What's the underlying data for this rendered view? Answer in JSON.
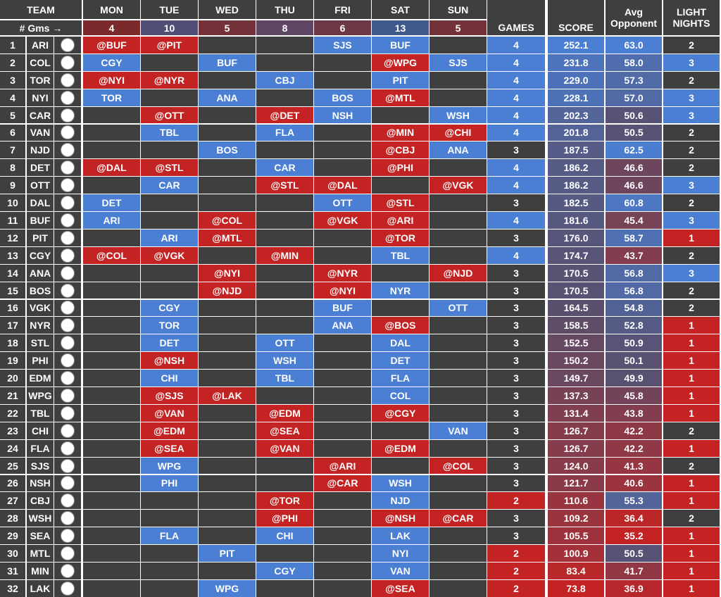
{
  "header": {
    "team": "TEAM",
    "gms_label": "# Gms →",
    "days": [
      "MON",
      "TUE",
      "WED",
      "THU",
      "FRI",
      "SAT",
      "SUN"
    ],
    "day_games": [
      "4",
      "10",
      "5",
      "8",
      "6",
      "13",
      "5"
    ],
    "games": "GAMES",
    "score": "SCORE",
    "avg_opp": "Avg Opponent",
    "light_nights": "LIGHT NIGHTS"
  },
  "colors": {
    "dark": "#3f3f3f",
    "blue": "#4a7fd4",
    "red": "#c42323",
    "light_day": "#3f5a85",
    "heavy_day": "#7a2a2a",
    "gms_neutral": "#5e3a4a"
  },
  "rows": [
    {
      "rank": "1",
      "team": "ARI",
      "logo_icon": "coyotes-logo-icon",
      "days": [
        [
          "@BUF",
          "red"
        ],
        [
          "@PIT",
          "red"
        ],
        [
          "",
          ""
        ],
        [
          "",
          ""
        ],
        [
          "SJS",
          "blue"
        ],
        [
          "BUF",
          "blue"
        ],
        [
          "",
          ""
        ]
      ],
      "games": "4",
      "score": "252.1",
      "avg": "63.0",
      "light": "2"
    },
    {
      "rank": "2",
      "team": "COL",
      "logo_icon": "avalanche-logo-icon",
      "days": [
        [
          "CGY",
          "blue"
        ],
        [
          "",
          ""
        ],
        [
          "BUF",
          "blue"
        ],
        [
          "",
          ""
        ],
        [
          "",
          ""
        ],
        [
          "@WPG",
          "red"
        ],
        [
          "SJS",
          "blue"
        ]
      ],
      "games": "4",
      "score": "231.8",
      "avg": "58.0",
      "light": "3"
    },
    {
      "rank": "3",
      "team": "TOR",
      "logo_icon": "maple-leafs-logo-icon",
      "days": [
        [
          "@NYI",
          "red"
        ],
        [
          "@NYR",
          "red"
        ],
        [
          "",
          ""
        ],
        [
          "CBJ",
          "blue"
        ],
        [
          "",
          ""
        ],
        [
          "PIT",
          "blue"
        ],
        [
          "",
          ""
        ]
      ],
      "games": "4",
      "score": "229.0",
      "avg": "57.3",
      "light": "2"
    },
    {
      "rank": "4",
      "team": "NYI",
      "logo_icon": "islanders-logo-icon",
      "days": [
        [
          "TOR",
          "blue"
        ],
        [
          "",
          ""
        ],
        [
          "ANA",
          "blue"
        ],
        [
          "",
          ""
        ],
        [
          "BOS",
          "blue"
        ],
        [
          "@MTL",
          "red"
        ],
        [
          "",
          ""
        ]
      ],
      "games": "4",
      "score": "228.1",
      "avg": "57.0",
      "light": "3"
    },
    {
      "rank": "5",
      "team": "CAR",
      "logo_icon": "hurricanes-logo-icon",
      "days": [
        [
          "",
          ""
        ],
        [
          "@OTT",
          "red"
        ],
        [
          "",
          ""
        ],
        [
          "@DET",
          "red"
        ],
        [
          "NSH",
          "blue"
        ],
        [
          "",
          ""
        ],
        [
          "WSH",
          "blue"
        ]
      ],
      "games": "4",
      "score": "202.3",
      "avg": "50.6",
      "light": "3"
    },
    {
      "rank": "6",
      "team": "VAN",
      "logo_icon": "canucks-logo-icon",
      "days": [
        [
          "",
          ""
        ],
        [
          "TBL",
          "blue"
        ],
        [
          "",
          ""
        ],
        [
          "FLA",
          "blue"
        ],
        [
          "",
          ""
        ],
        [
          "@MIN",
          "red"
        ],
        [
          "@CHI",
          "red"
        ]
      ],
      "games": "4",
      "score": "201.8",
      "avg": "50.5",
      "light": "2"
    },
    {
      "rank": "7",
      "team": "NJD",
      "logo_icon": "devils-logo-icon",
      "days": [
        [
          "",
          ""
        ],
        [
          "",
          ""
        ],
        [
          "BOS",
          "blue"
        ],
        [
          "",
          ""
        ],
        [
          "",
          ""
        ],
        [
          "@CBJ",
          "red"
        ],
        [
          "ANA",
          "blue"
        ]
      ],
      "games": "3",
      "score": "187.5",
      "avg": "62.5",
      "light": "2"
    },
    {
      "rank": "8",
      "team": "DET",
      "logo_icon": "red-wings-logo-icon",
      "days": [
        [
          "@DAL",
          "red"
        ],
        [
          "@STL",
          "red"
        ],
        [
          "",
          ""
        ],
        [
          "CAR",
          "blue"
        ],
        [
          "",
          ""
        ],
        [
          "@PHI",
          "red"
        ],
        [
          "",
          ""
        ]
      ],
      "games": "4",
      "score": "186.2",
      "avg": "46.6",
      "light": "2"
    },
    {
      "rank": "9",
      "team": "OTT",
      "logo_icon": "senators-logo-icon",
      "days": [
        [
          "",
          ""
        ],
        [
          "CAR",
          "blue"
        ],
        [
          "",
          ""
        ],
        [
          "@STL",
          "red"
        ],
        [
          "@DAL",
          "red"
        ],
        [
          "",
          ""
        ],
        [
          "@VGK",
          "red"
        ]
      ],
      "games": "4",
      "score": "186.2",
      "avg": "46.6",
      "light": "3"
    },
    {
      "rank": "10",
      "team": "DAL",
      "logo_icon": "stars-logo-icon",
      "days": [
        [
          "DET",
          "blue"
        ],
        [
          "",
          ""
        ],
        [
          "",
          ""
        ],
        [
          "",
          ""
        ],
        [
          "OTT",
          "blue"
        ],
        [
          "@STL",
          "red"
        ],
        [
          "",
          ""
        ]
      ],
      "games": "3",
      "score": "182.5",
      "avg": "60.8",
      "light": "2"
    },
    {
      "rank": "11",
      "team": "BUF",
      "logo_icon": "sabres-logo-icon",
      "days": [
        [
          "ARI",
          "blue"
        ],
        [
          "",
          ""
        ],
        [
          "@COL",
          "red"
        ],
        [
          "",
          ""
        ],
        [
          "@VGK",
          "red"
        ],
        [
          "@ARI",
          "red"
        ],
        [
          "",
          ""
        ]
      ],
      "games": "4",
      "score": "181.6",
      "avg": "45.4",
      "light": "3"
    },
    {
      "rank": "12",
      "team": "PIT",
      "logo_icon": "penguins-logo-icon",
      "days": [
        [
          "",
          ""
        ],
        [
          "ARI",
          "blue"
        ],
        [
          "@MTL",
          "red"
        ],
        [
          "",
          ""
        ],
        [
          "",
          ""
        ],
        [
          "@TOR",
          "red"
        ],
        [
          "",
          ""
        ]
      ],
      "games": "3",
      "score": "176.0",
      "avg": "58.7",
      "light": "1"
    },
    {
      "rank": "13",
      "team": "CGY",
      "logo_icon": "flames-logo-icon",
      "days": [
        [
          "@COL",
          "red"
        ],
        [
          "@VGK",
          "red"
        ],
        [
          "",
          ""
        ],
        [
          "@MIN",
          "red"
        ],
        [
          "",
          ""
        ],
        [
          "TBL",
          "blue"
        ],
        [
          "",
          ""
        ]
      ],
      "games": "4",
      "score": "174.7",
      "avg": "43.7",
      "light": "2"
    },
    {
      "rank": "14",
      "team": "ANA",
      "logo_icon": "ducks-logo-icon",
      "days": [
        [
          "",
          ""
        ],
        [
          "",
          ""
        ],
        [
          "@NYI",
          "red"
        ],
        [
          "",
          ""
        ],
        [
          "@NYR",
          "red"
        ],
        [
          "",
          ""
        ],
        [
          "@NJD",
          "red"
        ]
      ],
      "games": "3",
      "score": "170.5",
      "avg": "56.8",
      "light": "3"
    },
    {
      "rank": "15",
      "team": "BOS",
      "logo_icon": "bruins-logo-icon",
      "days": [
        [
          "",
          ""
        ],
        [
          "",
          ""
        ],
        [
          "@NJD",
          "red"
        ],
        [
          "",
          ""
        ],
        [
          "@NYI",
          "red"
        ],
        [
          "NYR",
          "blue"
        ],
        [
          "",
          ""
        ]
      ],
      "games": "3",
      "score": "170.5",
      "avg": "56.8",
      "light": "2"
    },
    {
      "rank": "16",
      "team": "VGK",
      "logo_icon": "golden-knights-logo-icon",
      "days": [
        [
          "",
          ""
        ],
        [
          "CGY",
          "blue"
        ],
        [
          "",
          ""
        ],
        [
          "",
          ""
        ],
        [
          "BUF",
          "blue"
        ],
        [
          "",
          ""
        ],
        [
          "OTT",
          "blue"
        ]
      ],
      "games": "3",
      "score": "164.5",
      "avg": "54.8",
      "light": "2"
    },
    {
      "rank": "17",
      "team": "NYR",
      "logo_icon": "rangers-logo-icon",
      "days": [
        [
          "",
          ""
        ],
        [
          "TOR",
          "blue"
        ],
        [
          "",
          ""
        ],
        [
          "",
          ""
        ],
        [
          "ANA",
          "blue"
        ],
        [
          "@BOS",
          "red"
        ],
        [
          "",
          ""
        ]
      ],
      "games": "3",
      "score": "158.5",
      "avg": "52.8",
      "light": "1"
    },
    {
      "rank": "18",
      "team": "STL",
      "logo_icon": "blues-logo-icon",
      "days": [
        [
          "",
          ""
        ],
        [
          "DET",
          "blue"
        ],
        [
          "",
          ""
        ],
        [
          "OTT",
          "blue"
        ],
        [
          "",
          ""
        ],
        [
          "DAL",
          "blue"
        ],
        [
          "",
          ""
        ]
      ],
      "games": "3",
      "score": "152.5",
      "avg": "50.9",
      "light": "1"
    },
    {
      "rank": "19",
      "team": "PHI",
      "logo_icon": "flyers-logo-icon",
      "days": [
        [
          "",
          ""
        ],
        [
          "@NSH",
          "red"
        ],
        [
          "",
          ""
        ],
        [
          "WSH",
          "blue"
        ],
        [
          "",
          ""
        ],
        [
          "DET",
          "blue"
        ],
        [
          "",
          ""
        ]
      ],
      "games": "3",
      "score": "150.2",
      "avg": "50.1",
      "light": "1"
    },
    {
      "rank": "20",
      "team": "EDM",
      "logo_icon": "oilers-logo-icon",
      "days": [
        [
          "",
          ""
        ],
        [
          "CHI",
          "blue"
        ],
        [
          "",
          ""
        ],
        [
          "TBL",
          "blue"
        ],
        [
          "",
          ""
        ],
        [
          "FLA",
          "blue"
        ],
        [
          "",
          ""
        ]
      ],
      "games": "3",
      "score": "149.7",
      "avg": "49.9",
      "light": "1"
    },
    {
      "rank": "21",
      "team": "WPG",
      "logo_icon": "jets-logo-icon",
      "days": [
        [
          "",
          ""
        ],
        [
          "@SJS",
          "red"
        ],
        [
          "@LAK",
          "red"
        ],
        [
          "",
          ""
        ],
        [
          "",
          ""
        ],
        [
          "COL",
          "blue"
        ],
        [
          "",
          ""
        ]
      ],
      "games": "3",
      "score": "137.3",
      "avg": "45.8",
      "light": "1"
    },
    {
      "rank": "22",
      "team": "TBL",
      "logo_icon": "lightning-logo-icon",
      "days": [
        [
          "",
          ""
        ],
        [
          "@VAN",
          "red"
        ],
        [
          "",
          ""
        ],
        [
          "@EDM",
          "red"
        ],
        [
          "",
          ""
        ],
        [
          "@CGY",
          "red"
        ],
        [
          "",
          ""
        ]
      ],
      "games": "3",
      "score": "131.4",
      "avg": "43.8",
      "light": "1"
    },
    {
      "rank": "23",
      "team": "CHI",
      "logo_icon": "blackhawks-logo-icon",
      "days": [
        [
          "",
          ""
        ],
        [
          "@EDM",
          "red"
        ],
        [
          "",
          ""
        ],
        [
          "@SEA",
          "red"
        ],
        [
          "",
          ""
        ],
        [
          "",
          ""
        ],
        [
          "VAN",
          "blue"
        ]
      ],
      "games": "3",
      "score": "126.7",
      "avg": "42.2",
      "light": "2"
    },
    {
      "rank": "24",
      "team": "FLA",
      "logo_icon": "panthers-logo-icon",
      "days": [
        [
          "",
          ""
        ],
        [
          "@SEA",
          "red"
        ],
        [
          "",
          ""
        ],
        [
          "@VAN",
          "red"
        ],
        [
          "",
          ""
        ],
        [
          "@EDM",
          "red"
        ],
        [
          "",
          ""
        ]
      ],
      "games": "3",
      "score": "126.7",
      "avg": "42.2",
      "light": "1"
    },
    {
      "rank": "25",
      "team": "SJS",
      "logo_icon": "sharks-logo-icon",
      "days": [
        [
          "",
          ""
        ],
        [
          "WPG",
          "blue"
        ],
        [
          "",
          ""
        ],
        [
          "",
          ""
        ],
        [
          "@ARI",
          "red"
        ],
        [
          "",
          ""
        ],
        [
          "@COL",
          "red"
        ]
      ],
      "games": "3",
      "score": "124.0",
      "avg": "41.3",
      "light": "2"
    },
    {
      "rank": "26",
      "team": "NSH",
      "logo_icon": "predators-logo-icon",
      "days": [
        [
          "",
          ""
        ],
        [
          "PHI",
          "blue"
        ],
        [
          "",
          ""
        ],
        [
          "",
          ""
        ],
        [
          "@CAR",
          "red"
        ],
        [
          "WSH",
          "blue"
        ],
        [
          "",
          ""
        ]
      ],
      "games": "3",
      "score": "121.7",
      "avg": "40.6",
      "light": "1"
    },
    {
      "rank": "27",
      "team": "CBJ",
      "logo_icon": "blue-jackets-logo-icon",
      "days": [
        [
          "",
          ""
        ],
        [
          "",
          ""
        ],
        [
          "",
          ""
        ],
        [
          "@TOR",
          "red"
        ],
        [
          "",
          ""
        ],
        [
          "NJD",
          "blue"
        ],
        [
          "",
          ""
        ]
      ],
      "games": "2",
      "score": "110.6",
      "avg": "55.3",
      "light": "1"
    },
    {
      "rank": "28",
      "team": "WSH",
      "logo_icon": "capitals-logo-icon",
      "days": [
        [
          "",
          ""
        ],
        [
          "",
          ""
        ],
        [
          "",
          ""
        ],
        [
          "@PHI",
          "red"
        ],
        [
          "",
          ""
        ],
        [
          "@NSH",
          "red"
        ],
        [
          "@CAR",
          "red"
        ]
      ],
      "games": "3",
      "score": "109.2",
      "avg": "36.4",
      "light": "2"
    },
    {
      "rank": "29",
      "team": "SEA",
      "logo_icon": "kraken-logo-icon",
      "days": [
        [
          "",
          ""
        ],
        [
          "FLA",
          "blue"
        ],
        [
          "",
          ""
        ],
        [
          "CHI",
          "blue"
        ],
        [
          "",
          ""
        ],
        [
          "LAK",
          "blue"
        ],
        [
          "",
          ""
        ]
      ],
      "games": "3",
      "score": "105.5",
      "avg": "35.2",
      "light": "1"
    },
    {
      "rank": "30",
      "team": "MTL",
      "logo_icon": "canadiens-logo-icon",
      "days": [
        [
          "",
          ""
        ],
        [
          "",
          ""
        ],
        [
          "PIT",
          "blue"
        ],
        [
          "",
          ""
        ],
        [
          "",
          ""
        ],
        [
          "NYI",
          "blue"
        ],
        [
          "",
          ""
        ]
      ],
      "games": "2",
      "score": "100.9",
      "avg": "50.5",
      "light": "1"
    },
    {
      "rank": "31",
      "team": "MIN",
      "logo_icon": "wild-logo-icon",
      "days": [
        [
          "",
          ""
        ],
        [
          "",
          ""
        ],
        [
          "",
          ""
        ],
        [
          "CGY",
          "blue"
        ],
        [
          "",
          ""
        ],
        [
          "VAN",
          "blue"
        ],
        [
          "",
          ""
        ]
      ],
      "games": "2",
      "score": "83.4",
      "avg": "41.7",
      "light": "1"
    },
    {
      "rank": "32",
      "team": "LAK",
      "logo_icon": "kings-logo-icon",
      "days": [
        [
          "",
          ""
        ],
        [
          "",
          ""
        ],
        [
          "WPG",
          "blue"
        ],
        [
          "",
          ""
        ],
        [
          "",
          ""
        ],
        [
          "@SEA",
          "red"
        ],
        [
          "",
          ""
        ]
      ],
      "games": "2",
      "score": "73.8",
      "avg": "36.9",
      "light": "1"
    }
  ]
}
